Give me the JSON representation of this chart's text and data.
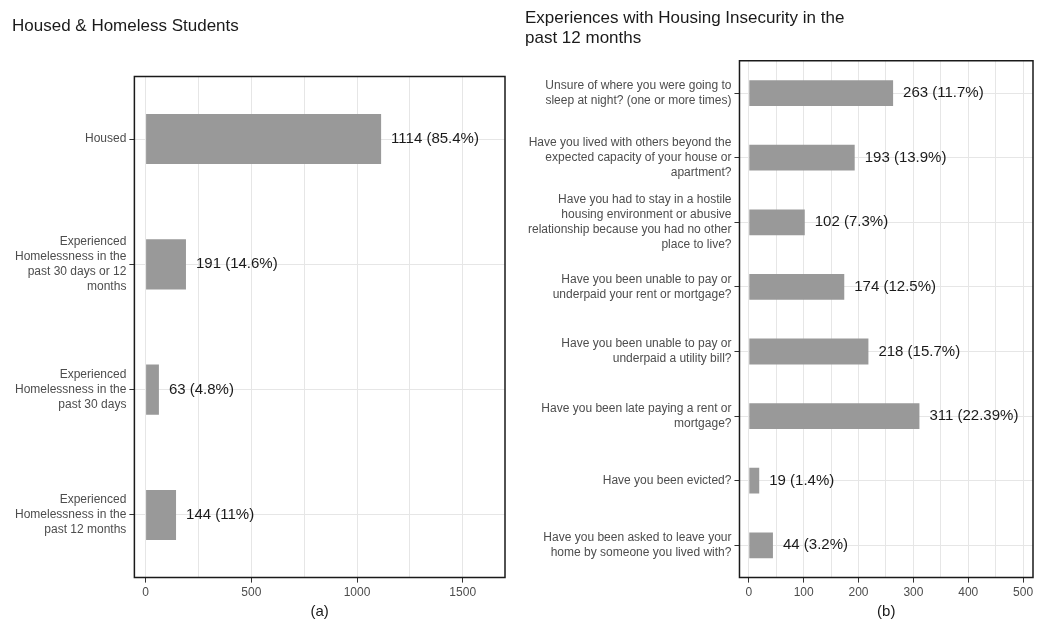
{
  "chart_data": [
    {
      "type": "bar",
      "orientation": "horizontal",
      "title": "Housed & Homeless Students",
      "xlabel": "(a)",
      "categories": [
        "Housed",
        "Experienced Homelessness in the past 30 days or 12 months",
        "Experienced Homelessness in the past 30 days",
        "Experienced Homelessness in the past 12 months"
      ],
      "values": [
        1114,
        191,
        63,
        144
      ],
      "color": "#999999",
      "value_labels": [
        "1114 (85.4%)",
        "191 (14.6%)",
        "63 (4.8%)",
        "144 (11%)"
      ],
      "xlim": [
        -53,
        1700
      ],
      "xticks": [
        0,
        {
          "value": 250,
          "label": null
        },
        500,
        {
          "value": 750,
          "label": null
        },
        1000,
        {
          "value": 1250,
          "label": null
        },
        1500
      ],
      "grid": true
    },
    {
      "type": "bar",
      "orientation": "horizontal",
      "title": "Experiences with Housing Insecurity in the past 12 months",
      "xlabel": "(b)",
      "categories": [
        "Unsure of where you were going to sleep at night? (one or more times)",
        "Have you lived with others beyond the expected capacity of your house or apartment?",
        "Have you had to stay in a hostile housing environment or abusive relationship because you had no other place to live?",
        "Have you been unable to pay or underpaid your rent or mortgage?",
        "Have you been unable to pay or underpaid a utility bill?",
        "Have you been late paying a rent or mortgage?",
        "Have you been evicted?",
        "Have you been asked to leave your home by someone you lived with?"
      ],
      "values": [
        263,
        193,
        102,
        174,
        218,
        311,
        19,
        44
      ],
      "color": "#999999",
      "value_labels": [
        "263 (11.7%)",
        "193 (13.9%)",
        "102 (7.3%)",
        "174 (12.5%)",
        "218 (15.7%)",
        "311 (22.39%)",
        "19 (1.4%)",
        "44 (3.2%)"
      ],
      "xlim": [
        -17,
        518
      ],
      "xticks": [
        0,
        {
          "value": 50,
          "label": null
        },
        100,
        {
          "value": 150,
          "label": null
        },
        200,
        {
          "value": 250,
          "label": null
        },
        300,
        {
          "value": 350,
          "label": null
        },
        400,
        {
          "value": 450,
          "label": null
        },
        500
      ],
      "grid": true
    }
  ]
}
